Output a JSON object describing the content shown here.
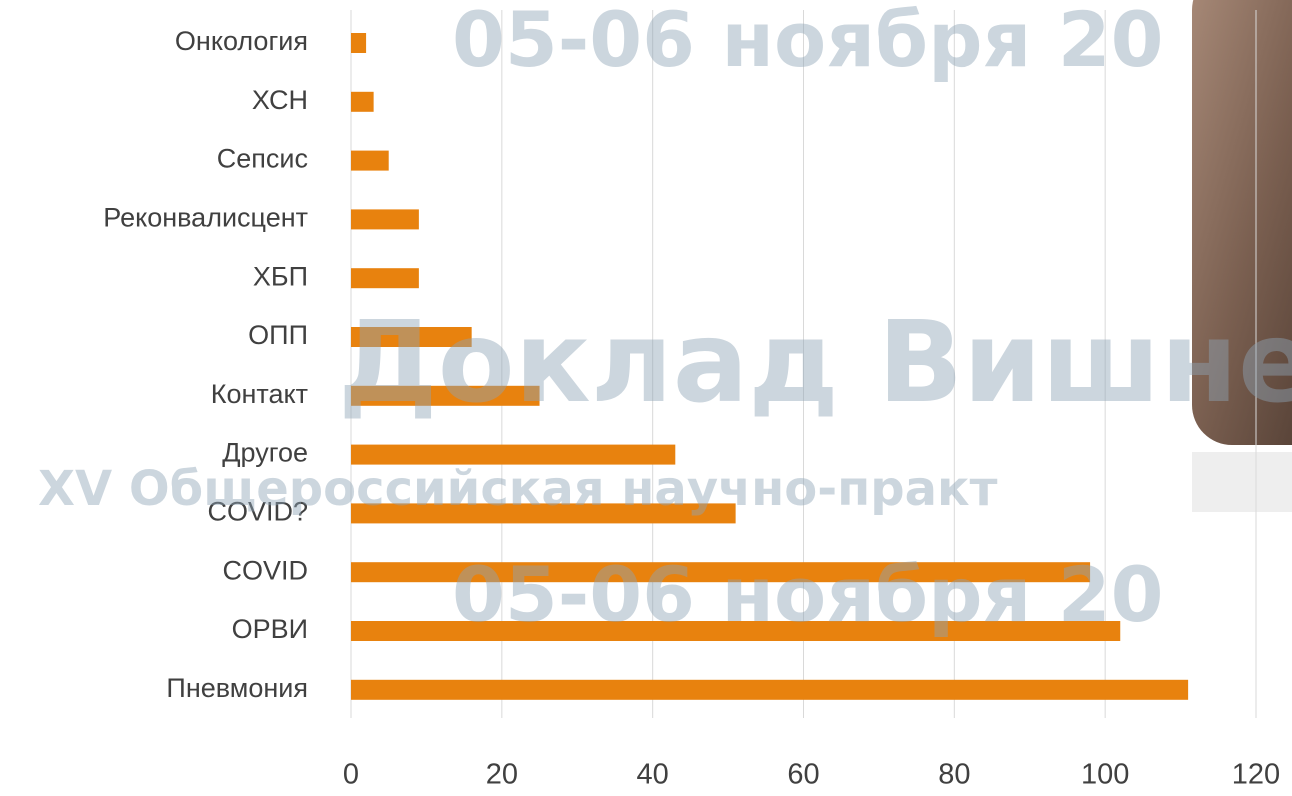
{
  "chart_data": {
    "type": "barh",
    "categories": [
      "Онкология",
      "ХСН",
      "Сепсис",
      "Реконвалисцент",
      "ХБП",
      "ОПП",
      "Контакт",
      "Другое",
      "COVID?",
      "COVID",
      "ОРВИ",
      "Пневмония"
    ],
    "values": [
      2,
      3,
      5,
      9,
      9,
      16,
      25,
      43,
      51,
      98,
      102,
      111
    ],
    "color": "#e8820e",
    "xlim": [
      0,
      120
    ],
    "xticks": [
      0,
      20,
      40,
      60,
      80,
      100,
      120
    ],
    "grid": true
  },
  "watermarks": [
    "05-06 ноября 20",
    "Доклад Вишне",
    "XV Общероссийская научно-практ",
    "05-06 ноября 20"
  ]
}
